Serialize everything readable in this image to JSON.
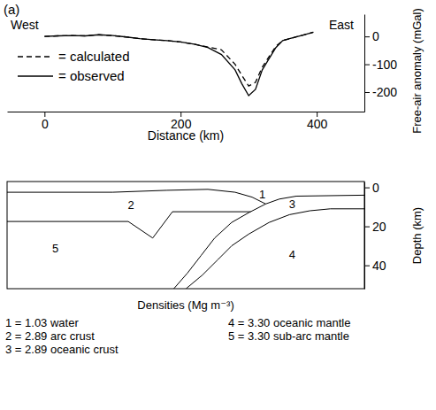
{
  "chart_data": [
    {
      "type": "line",
      "panel_label": "(a)",
      "west_label": "West",
      "east_label": "East",
      "x_label": "Distance (km)",
      "y_label": "Free-air anomaly (mGal)",
      "xlim": [
        -55,
        470
      ],
      "xticks": [
        0,
        200,
        400
      ],
      "ylim": [
        -270,
        80
      ],
      "yticks": [
        -200,
        -100,
        0
      ],
      "legend": "upper left",
      "series": [
        {
          "name": "= calculated",
          "color": "#000000",
          "line_style": "dashed",
          "x": [
            0,
            20,
            40,
            60,
            80,
            100,
            120,
            140,
            160,
            180,
            200,
            220,
            240,
            260,
            280,
            290,
            300,
            310,
            320,
            340,
            350,
            360,
            380,
            395
          ],
          "values": [
            0,
            2,
            3,
            2,
            6,
            3,
            -2,
            -8,
            -12,
            -15,
            -20,
            -28,
            -38,
            -48,
            -100,
            -140,
            -178,
            -165,
            -110,
            -35,
            -15,
            -8,
            5,
            15
          ]
        },
        {
          "name": "= observed",
          "color": "#000000",
          "line_style": "solid",
          "x": [
            0,
            20,
            40,
            60,
            80,
            100,
            120,
            140,
            160,
            180,
            200,
            220,
            240,
            260,
            280,
            290,
            300,
            310,
            320,
            340,
            350,
            360,
            380,
            395
          ],
          "values": [
            0,
            2,
            3,
            2,
            6,
            3,
            -2,
            -8,
            -12,
            -15,
            -20,
            -28,
            -40,
            -65,
            -120,
            -170,
            -213,
            -190,
            -120,
            -40,
            -15,
            -8,
            5,
            15
          ]
        }
      ]
    },
    {
      "type": "cross_section",
      "y_label": "Depth (km)",
      "xlim": [
        -55,
        470
      ],
      "ylim": [
        -3,
        52
      ],
      "yticks": [
        0,
        20,
        40
      ],
      "tick_labels": "y",
      "series": [
        {
          "color": "#000000",
          "line_style": "solid",
          "x": [
            -55,
            100,
            180,
            240,
            280,
            305,
            325,
            345,
            370,
            470
          ],
          "values": [
            2.5,
            2.5,
            1.5,
            1,
            2.5,
            5,
            8.5,
            6,
            4.5,
            4
          ]
        },
        {
          "color": "#000000",
          "line_style": "solid",
          "x": [
            325,
            300,
            275,
            250,
            230,
            210,
            190
          ],
          "values": [
            8.5,
            13,
            18,
            26,
            35,
            44,
            52
          ]
        },
        {
          "color": "#000000",
          "line_style": "solid",
          "x": [
            470,
            420,
            390,
            360,
            330,
            300,
            275,
            255,
            232,
            208
          ],
          "values": [
            11,
            11,
            12,
            14,
            18,
            24,
            30,
            37,
            45,
            52
          ]
        },
        {
          "color": "#000000",
          "line_style": "solid",
          "x": [
            -55,
            123,
            159,
            188,
            303
          ],
          "values": [
            17.5,
            17.5,
            26,
            12.5,
            12.5
          ]
        }
      ],
      "region_labels": [
        {
          "label": "1",
          "x": 320,
          "value": 4
        },
        {
          "label": "2",
          "x": 127,
          "value": 9.5
        },
        {
          "label": "3",
          "x": 364,
          "value": 9
        },
        {
          "label": "4",
          "x": 364,
          "value": 35
        },
        {
          "label": "5",
          "x": 16,
          "value": 32
        }
      ],
      "density_title": "Densities (Mg m⁻³)",
      "density_key": [
        "1 = 1.03 water",
        "2 = 2.89 arc crust",
        "3 = 2.89 oceanic crust",
        "4 = 3.30 oceanic mantle",
        "5 = 3.30 sub-arc mantle"
      ]
    }
  ]
}
